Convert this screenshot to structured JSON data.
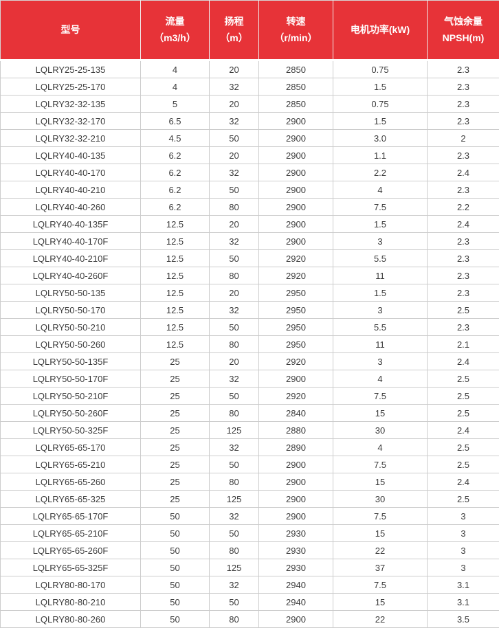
{
  "table": {
    "name": "pump-specification-table",
    "columns": [
      {
        "key": "model",
        "label_lines": [
          "型号"
        ]
      },
      {
        "key": "flow",
        "label_lines": [
          "流量",
          "（m3/h）"
        ]
      },
      {
        "key": "head",
        "label_lines": [
          "扬程",
          "（m）"
        ]
      },
      {
        "key": "speed",
        "label_lines": [
          "转速",
          "（r/min）"
        ]
      },
      {
        "key": "power",
        "label_lines": [
          "电机功率(kW)"
        ]
      },
      {
        "key": "npsh",
        "label_lines": [
          "气蚀余量",
          "NPSH(m)"
        ]
      }
    ],
    "rows": [
      [
        "LQLRY25-25-135",
        "4",
        "20",
        "2850",
        "0.75",
        "2.3"
      ],
      [
        "LQLRY25-25-170",
        "4",
        "32",
        "2850",
        "1.5",
        "2.3"
      ],
      [
        "LQLRY32-32-135",
        "5",
        "20",
        "2850",
        "0.75",
        "2.3"
      ],
      [
        "LQLRY32-32-170",
        "6.5",
        "32",
        "2900",
        "1.5",
        "2.3"
      ],
      [
        "LQLRY32-32-210",
        "4.5",
        "50",
        "2900",
        "3.0",
        "2"
      ],
      [
        "LQLRY40-40-135",
        "6.2",
        "20",
        "2900",
        "1.1",
        "2.3"
      ],
      [
        "LQLRY40-40-170",
        "6.2",
        "32",
        "2900",
        "2.2",
        "2.4"
      ],
      [
        "LQLRY40-40-210",
        "6.2",
        "50",
        "2900",
        "4",
        "2.3"
      ],
      [
        "LQLRY40-40-260",
        "6.2",
        "80",
        "2900",
        "7.5",
        "2.2"
      ],
      [
        "LQLRY40-40-135F",
        "12.5",
        "20",
        "2900",
        "1.5",
        "2.4"
      ],
      [
        "LQLRY40-40-170F",
        "12.5",
        "32",
        "2900",
        "3",
        "2.3"
      ],
      [
        "LQLRY40-40-210F",
        "12.5",
        "50",
        "2920",
        "5.5",
        "2.3"
      ],
      [
        "LQLRY40-40-260F",
        "12.5",
        "80",
        "2920",
        "11",
        "2.3"
      ],
      [
        "LQLRY50-50-135",
        "12.5",
        "20",
        "2950",
        "1.5",
        "2.3"
      ],
      [
        "LQLRY50-50-170",
        "12.5",
        "32",
        "2950",
        "3",
        "2.5"
      ],
      [
        "LQLRY50-50-210",
        "12.5",
        "50",
        "2950",
        "5.5",
        "2.3"
      ],
      [
        "LQLRY50-50-260",
        "12.5",
        "80",
        "2950",
        "11",
        "2.1"
      ],
      [
        "LQLRY50-50-135F",
        "25",
        "20",
        "2920",
        "3",
        "2.4"
      ],
      [
        "LQLRY50-50-170F",
        "25",
        "32",
        "2900",
        "4",
        "2.5"
      ],
      [
        "LQLRY50-50-210F",
        "25",
        "50",
        "2920",
        "7.5",
        "2.5"
      ],
      [
        "LQLRY50-50-260F",
        "25",
        "80",
        "2840",
        "15",
        "2.5"
      ],
      [
        "LQLRY50-50-325F",
        "25",
        "125",
        "2880",
        "30",
        "2.4"
      ],
      [
        "LQLRY65-65-170",
        "25",
        "32",
        "2890",
        "4",
        "2.5"
      ],
      [
        "LQLRY65-65-210",
        "25",
        "50",
        "2900",
        "7.5",
        "2.5"
      ],
      [
        "LQLRY65-65-260",
        "25",
        "80",
        "2900",
        "15",
        "2.4"
      ],
      [
        "LQLRY65-65-325",
        "25",
        "125",
        "2900",
        "30",
        "2.5"
      ],
      [
        "LQLRY65-65-170F",
        "50",
        "32",
        "2900",
        "7.5",
        "3"
      ],
      [
        "LQLRY65-65-210F",
        "50",
        "50",
        "2930",
        "15",
        "3"
      ],
      [
        "LQLRY65-65-260F",
        "50",
        "80",
        "2930",
        "22",
        "3"
      ],
      [
        "LQLRY65-65-325F",
        "50",
        "125",
        "2930",
        "37",
        "3"
      ],
      [
        "LQLRY80-80-170",
        "50",
        "32",
        "2940",
        "7.5",
        "3.1"
      ],
      [
        "LQLRY80-80-210",
        "50",
        "50",
        "2940",
        "15",
        "3.1"
      ],
      [
        "LQLRY80-80-260",
        "50",
        "80",
        "2900",
        "22",
        "3.5"
      ]
    ]
  },
  "colors": {
    "header_bg": "#e73338",
    "header_text": "#ffffff",
    "body_text": "#3b3b3b",
    "grid_line": "#cccccc"
  }
}
